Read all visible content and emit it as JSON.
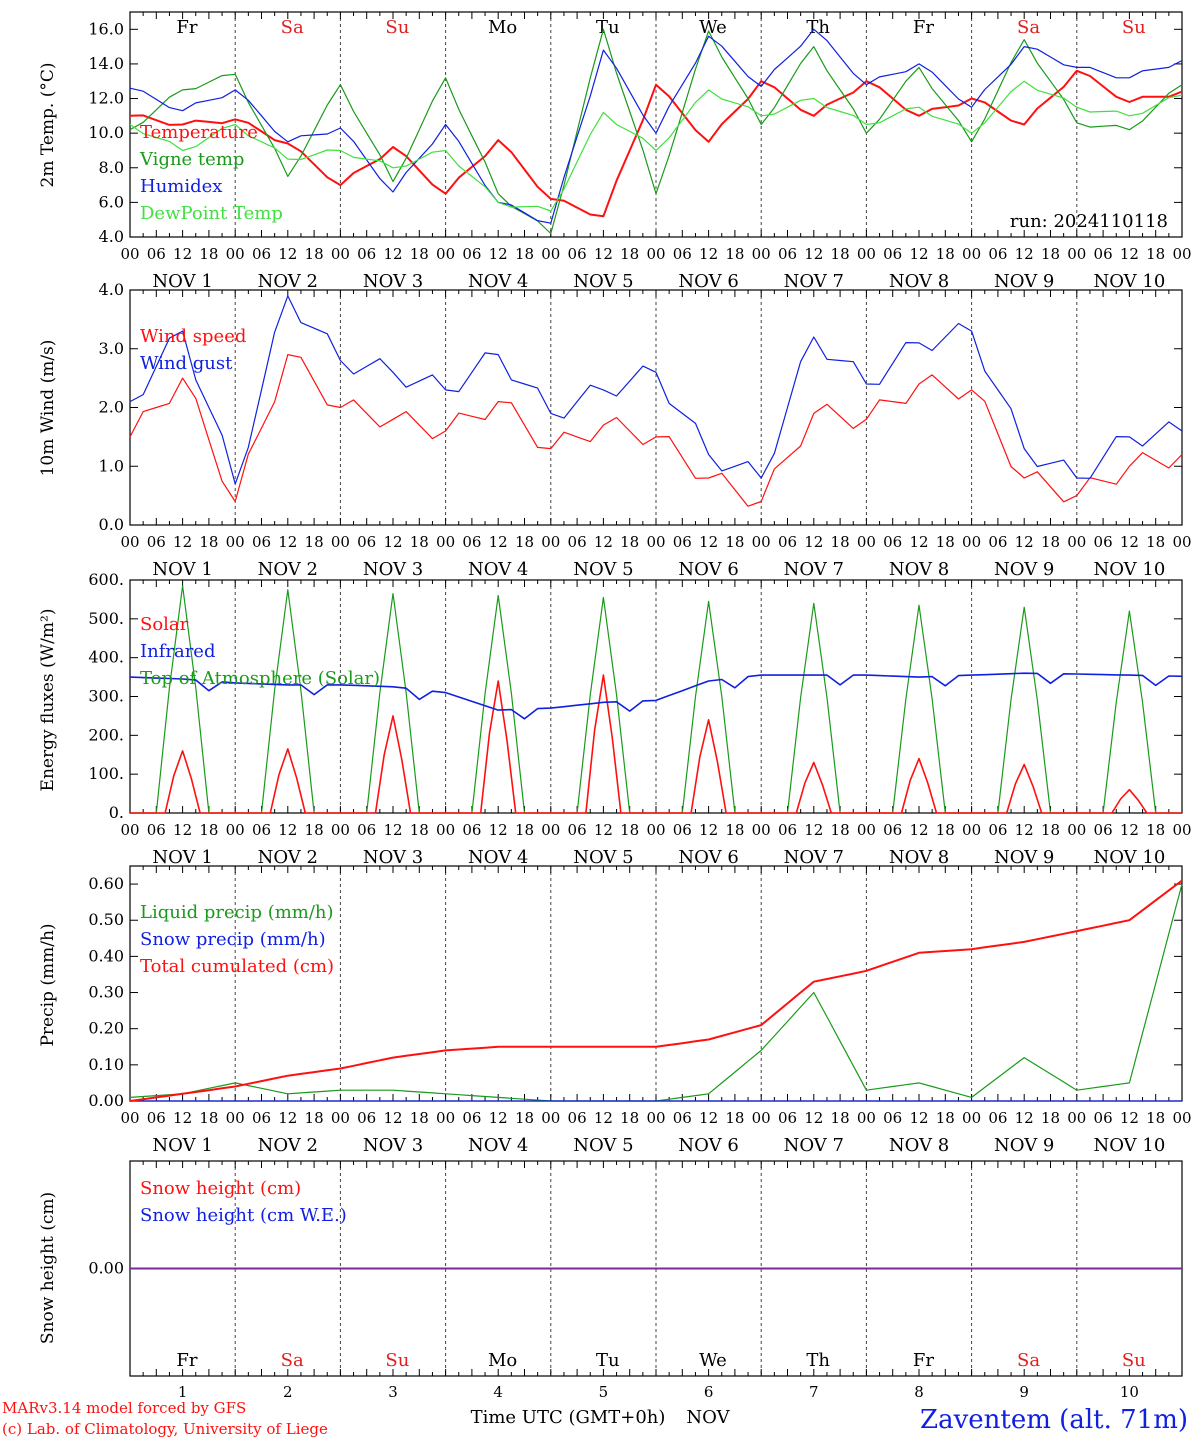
{
  "meta": {
    "run_label": "run: 2024110118",
    "model_line1": "MARv3.14 model forced by GFS",
    "model_line2": "(c) Lab. of Climatology, University of Liege",
    "time_axis_label": "Time UTC (GMT+0h)",
    "month_label": "NOV",
    "station": "Zaventem (alt. 71m)"
  },
  "colors": {
    "red": "#ff1010",
    "green": "#1a9a1a",
    "blue": "#1020e0",
    "light_green": "#40e040",
    "weekend": "#e02020",
    "weekday": "#000000",
    "purple": "#7a2a9a"
  },
  "chart_data": [
    {
      "type": "line",
      "ylabel": "2m Temp. (°C)",
      "ylim": [
        4.0,
        17.0
      ],
      "yticks": [
        "4.0",
        "6.0",
        "8.0",
        "10.0",
        "12.0",
        "14.0",
        "16.0"
      ],
      "x_hours": [
        0,
        12,
        24,
        36,
        48,
        60,
        72,
        84,
        96,
        108,
        120,
        132,
        144,
        156,
        168,
        180,
        192,
        204,
        216,
        228,
        240
      ],
      "series": [
        {
          "name": "Temperature",
          "color": "red",
          "values": [
            11.0,
            10.5,
            10.8,
            9.4,
            7.0,
            9.2,
            6.5,
            9.6,
            6.2,
            5.2,
            12.8,
            9.5,
            13.0,
            11.0,
            13.0,
            11.0,
            12.0,
            10.5,
            13.6,
            11.8,
            12.4
          ]
        },
        {
          "name": "Vigne temp",
          "color": "green",
          "values": [
            10.2,
            12.5,
            13.4,
            7.5,
            12.8,
            7.2,
            13.2,
            6.5,
            4.2,
            16.0,
            6.5,
            15.9,
            10.5,
            15.0,
            10.0,
            13.8,
            9.5,
            15.4,
            10.6,
            10.2,
            12.8
          ]
        },
        {
          "name": "Humidex",
          "color": "blue",
          "values": [
            12.6,
            11.3,
            12.5,
            9.5,
            10.3,
            6.6,
            10.5,
            6.0,
            4.8,
            14.8,
            10.0,
            15.6,
            12.7,
            16.0,
            12.8,
            14.0,
            11.5,
            15.0,
            13.8,
            13.2,
            14.2
          ]
        },
        {
          "name": "DewPoint Temp",
          "color": "light_green",
          "values": [
            10.5,
            9.0,
            10.5,
            8.5,
            9.0,
            8.0,
            9.0,
            6.0,
            5.5,
            11.2,
            9.0,
            12.5,
            11.0,
            12.0,
            10.5,
            11.5,
            10.0,
            13.0,
            11.5,
            11.0,
            12.2
          ]
        }
      ]
    },
    {
      "type": "line",
      "ylabel": "10m Wind (m/s)",
      "ylim": [
        0.0,
        4.0
      ],
      "yticks": [
        "0.0",
        "1.0",
        "2.0",
        "3.0",
        "4.0"
      ],
      "x_hours": [
        0,
        12,
        24,
        36,
        48,
        60,
        72,
        84,
        96,
        108,
        120,
        132,
        144,
        156,
        168,
        180,
        192,
        204,
        216,
        228,
        240
      ],
      "series": [
        {
          "name": "Wind speed",
          "color": "red",
          "values": [
            1.5,
            2.5,
            0.4,
            2.9,
            2.0,
            1.8,
            1.6,
            2.1,
            1.3,
            1.7,
            1.5,
            0.8,
            0.4,
            1.9,
            1.8,
            2.4,
            2.3,
            0.8,
            0.5,
            1.0,
            1.2
          ]
        },
        {
          "name": "Wind gust",
          "color": "blue",
          "values": [
            2.1,
            3.3,
            0.7,
            3.9,
            2.8,
            2.6,
            2.3,
            2.9,
            1.9,
            2.3,
            2.6,
            1.2,
            0.8,
            3.2,
            2.4,
            3.1,
            3.3,
            1.3,
            0.8,
            1.5,
            1.6
          ]
        }
      ]
    },
    {
      "type": "line",
      "ylabel": "Energy fluxes (W/m²)",
      "ylim": [
        0,
        600
      ],
      "yticks": [
        "0.",
        "100.",
        "200.",
        "300.",
        "400.",
        "500.",
        "600."
      ],
      "solar_peaks": [
        160,
        165,
        250,
        340,
        355,
        240,
        130,
        140,
        125,
        60
      ],
      "toa_peaks": [
        585,
        575,
        565,
        560,
        555,
        545,
        540,
        535,
        530,
        520
      ],
      "infrared": [
        350,
        345,
        335,
        330,
        330,
        325,
        310,
        265,
        270,
        285,
        290,
        340,
        355,
        355,
        355,
        350,
        355,
        360,
        358,
        355,
        352
      ],
      "series": [
        {
          "name": "Solar",
          "color": "red"
        },
        {
          "name": "Infrared",
          "color": "blue"
        },
        {
          "name": "Top of Atmosphere (Solar)",
          "color": "green"
        }
      ]
    },
    {
      "type": "line",
      "ylabel": "Precip (mm/h)",
      "ylim": [
        0.0,
        0.65
      ],
      "yticks": [
        "0.00",
        "0.10",
        "0.20",
        "0.30",
        "0.40",
        "0.50",
        "0.60"
      ],
      "x_hours": [
        0,
        12,
        24,
        36,
        48,
        60,
        72,
        84,
        96,
        108,
        120,
        132,
        144,
        156,
        168,
        180,
        192,
        204,
        216,
        228,
        240
      ],
      "series": [
        {
          "name": "Liquid precip (mm/h)",
          "color": "green",
          "values": [
            0.01,
            0.02,
            0.05,
            0.02,
            0.03,
            0.03,
            0.02,
            0.01,
            0.0,
            0.0,
            0.0,
            0.02,
            0.14,
            0.3,
            0.03,
            0.05,
            0.01,
            0.12,
            0.03,
            0.05,
            0.6
          ]
        },
        {
          "name": "Snow precip (mm/h)",
          "color": "blue",
          "values": [
            0,
            0,
            0,
            0,
            0,
            0,
            0,
            0,
            0,
            0,
            0,
            0,
            0,
            0,
            0,
            0,
            0,
            0,
            0,
            0,
            0
          ]
        },
        {
          "name": "Total cumulated (cm)",
          "color": "red",
          "values": [
            0.0,
            0.02,
            0.04,
            0.07,
            0.09,
            0.12,
            0.14,
            0.15,
            0.15,
            0.15,
            0.15,
            0.17,
            0.21,
            0.33,
            0.36,
            0.41,
            0.42,
            0.44,
            0.47,
            0.5,
            0.61
          ]
        }
      ]
    },
    {
      "type": "line",
      "ylabel": "Snow height (cm)",
      "ylim": [
        -1,
        1
      ],
      "yticks": [
        "0.00"
      ],
      "series": [
        {
          "name": "Snow height (cm)",
          "color": "red",
          "values": [
            0,
            0
          ]
        },
        {
          "name": "Snow height (cm W.E.)",
          "color": "blue",
          "values": [
            0,
            0
          ]
        }
      ]
    }
  ],
  "days": [
    {
      "abbr": "Fr",
      "num": "1",
      "weekend": false
    },
    {
      "abbr": "Sa",
      "num": "2",
      "weekend": true
    },
    {
      "abbr": "Su",
      "num": "3",
      "weekend": true
    },
    {
      "abbr": "Mo",
      "num": "4",
      "weekend": false
    },
    {
      "abbr": "Tu",
      "num": "5",
      "weekend": false
    },
    {
      "abbr": "We",
      "num": "6",
      "weekend": false
    },
    {
      "abbr": "Th",
      "num": "7",
      "weekend": false
    },
    {
      "abbr": "Fr",
      "num": "8",
      "weekend": false
    },
    {
      "abbr": "Sa",
      "num": "9",
      "weekend": true
    },
    {
      "abbr": "Su",
      "num": "10",
      "weekend": true
    }
  ],
  "hour_ticks": [
    "00",
    "06",
    "12",
    "18"
  ],
  "date_labels": [
    "NOV  1",
    "NOV  2",
    "NOV  3",
    "NOV  4",
    "NOV  5",
    "NOV  6",
    "NOV  7",
    "NOV  8",
    "NOV  9",
    "NOV 10"
  ]
}
